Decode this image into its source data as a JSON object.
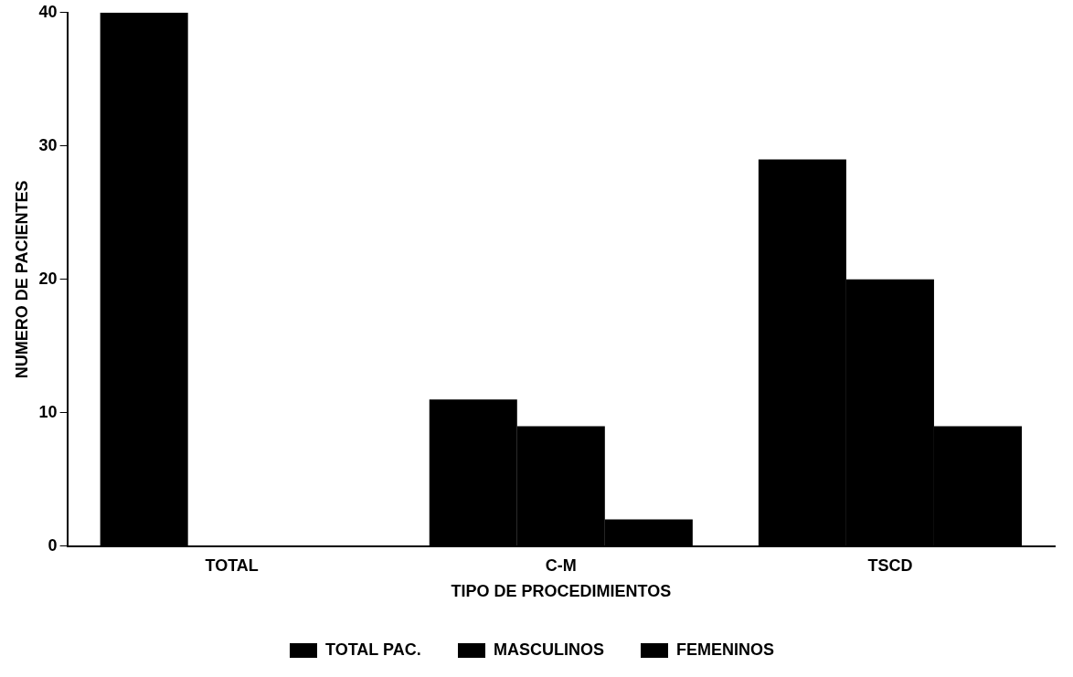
{
  "chart_data": {
    "type": "bar",
    "xlabel": "TIPO DE PROCEDIMIENTOS",
    "ylabel": "NUMERO DE PACIENTES",
    "categories": [
      "TOTAL",
      "C-M",
      "TSCD"
    ],
    "series": [
      {
        "name": "TOTAL PAC.",
        "color": "#000000",
        "values": [
          40,
          11,
          29
        ]
      },
      {
        "name": "MASCULINOS",
        "color": "#000000",
        "values": [
          null,
          9,
          20
        ]
      },
      {
        "name": "FEMENINOS",
        "color": "#000000",
        "values": [
          null,
          2,
          9
        ]
      }
    ],
    "ylim": [
      0,
      40
    ],
    "yticks": [
      0,
      10,
      20,
      30,
      40
    ],
    "grid": false,
    "legend": "bottom"
  }
}
